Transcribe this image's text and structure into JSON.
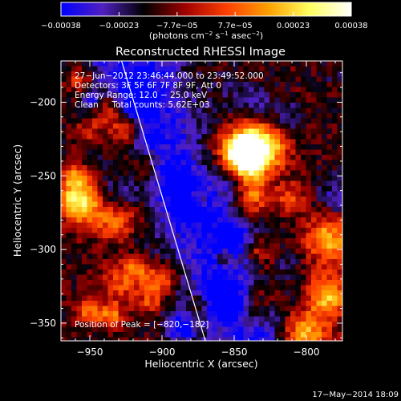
{
  "chart_data": {
    "type": "heatmap",
    "title": "Reconstructed RHESSI Image",
    "xlabel": "Heliocentric X (arcsec)",
    "ylabel": "Heliocentric Y (arcsec)",
    "xlim": [
      -970,
      -775
    ],
    "ylim": [
      -362,
      -172
    ],
    "x_ticks": [
      -950,
      -900,
      -850,
      -800
    ],
    "y_ticks": [
      -200,
      -250,
      -300,
      -350
    ],
    "x_tick_labels": [
      "−950",
      "−900",
      "−850",
      "−800"
    ],
    "y_tick_labels": [
      "−200",
      "−250",
      "−300",
      "−350"
    ],
    "colorbar": {
      "range": [
        -0.00038,
        0.00038
      ],
      "tick_labels": [
        "−0.00038",
        "−0.00023",
        "−7.7e−05",
        "7.7e−05",
        "0.00023",
        "0.00038"
      ],
      "units_prefix": "(photons cm",
      "units_exp1": "−2",
      "units_mid": " s",
      "units_exp2": "−1",
      "units_mid2": " asec",
      "units_exp3": "−2",
      "units_suffix": ")",
      "colormap_stops": [
        "#0000ff",
        "#5020c0",
        "#000000",
        "#a00000",
        "#ff4000",
        "#ffa000",
        "#ffff60",
        "#ffffff"
      ]
    },
    "annotations": {
      "time_range": "27−Jun−2012 23:46:44.000 to 23:49:52.000",
      "detectors": "Detectors: 3F 5F 6F 7F 8F 9F, Att 0",
      "energy_range": "Energy Range: 12.0 − 25.0 keV",
      "clean": "Clean     Total counts: 5.62E+03",
      "peak": "Position of Peak = [−820,−182]"
    },
    "limb_line": {
      "x": [
        -928,
        -870
      ],
      "y": [
        -172,
        -362
      ]
    },
    "timestamp": "17−May−2014 18:09"
  }
}
